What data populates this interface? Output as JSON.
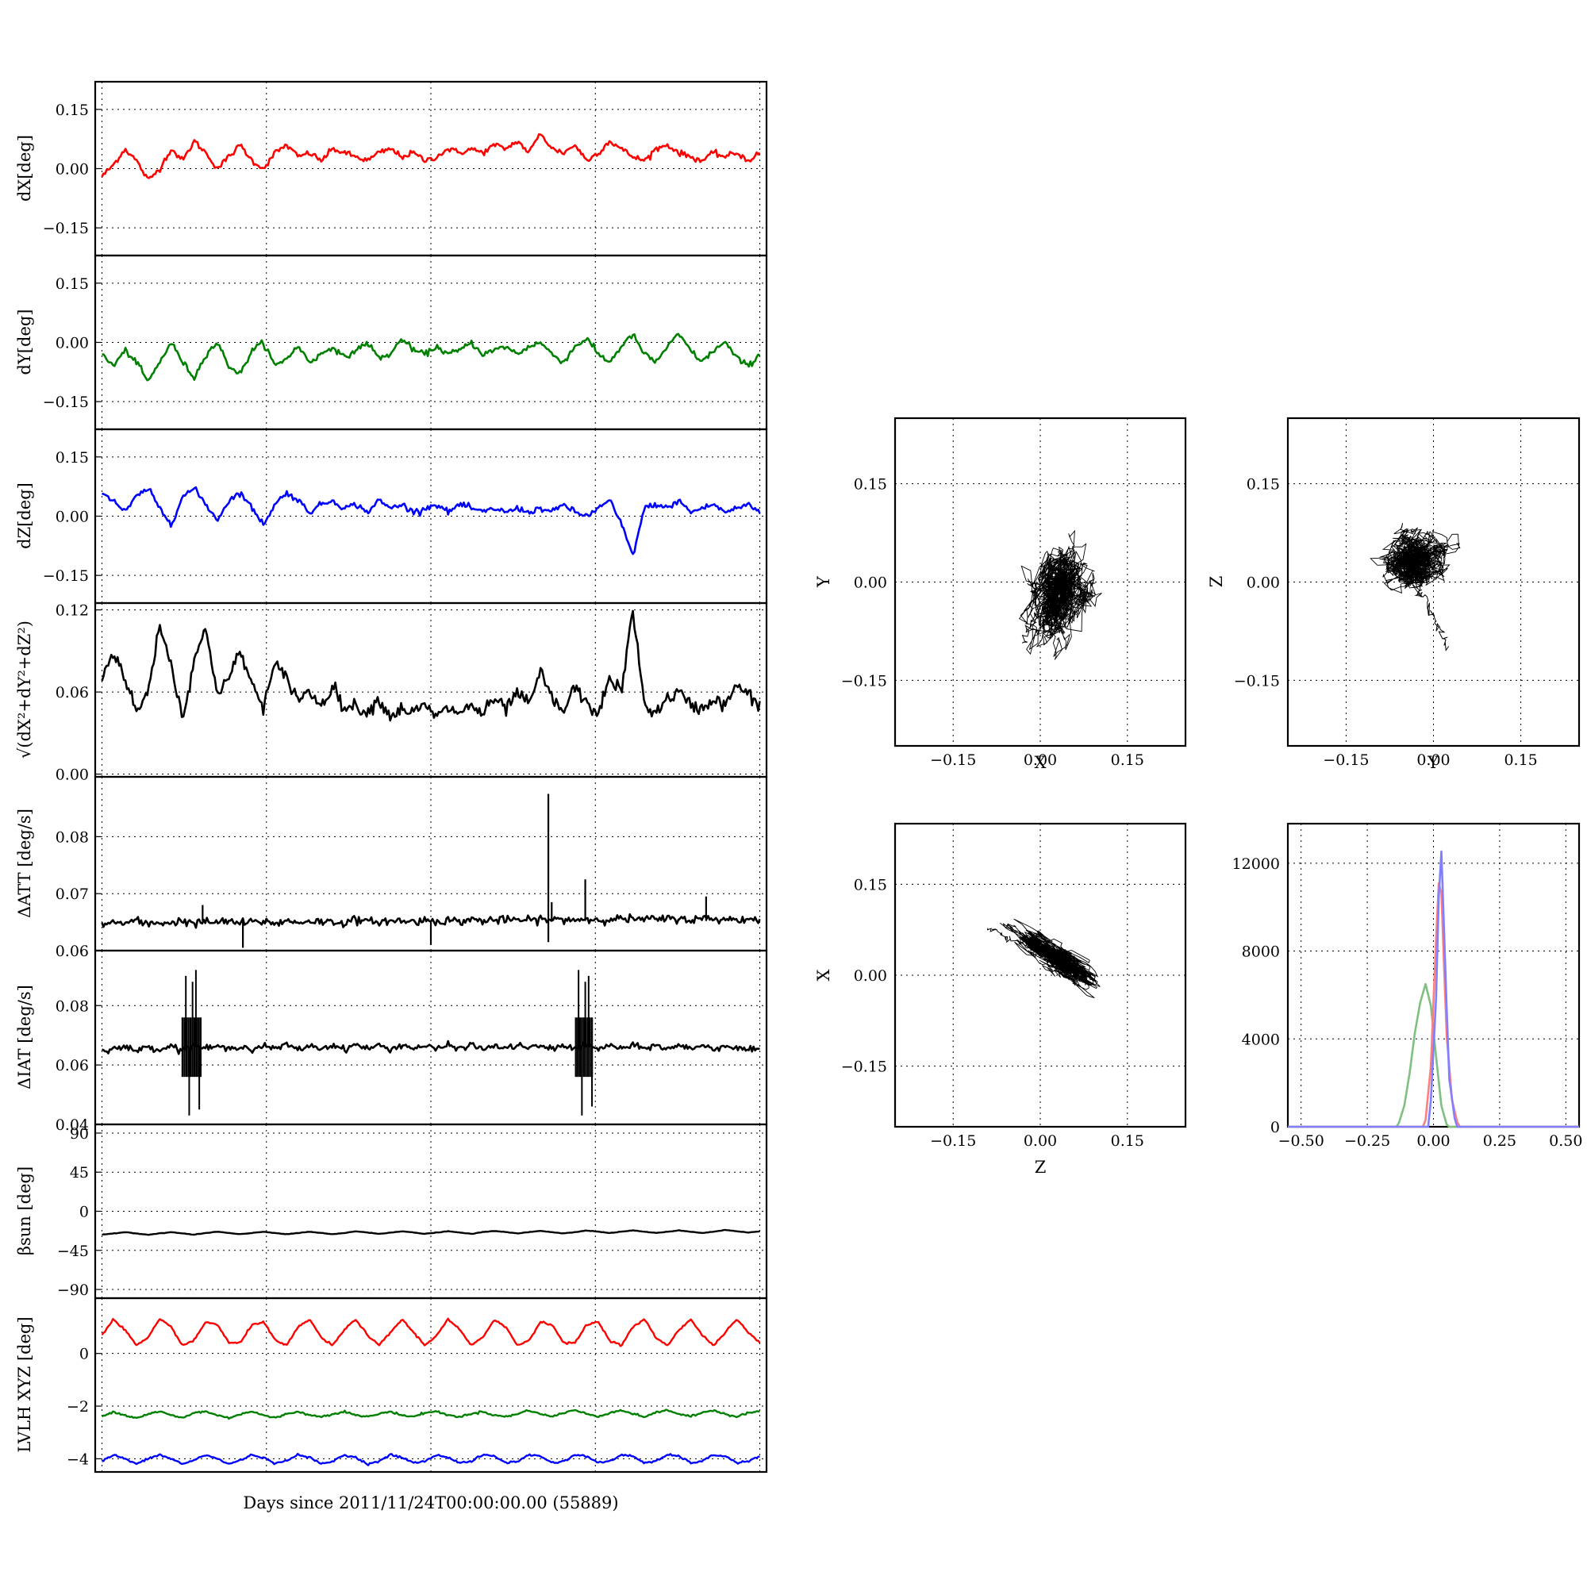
{
  "chart_data": [
    {
      "id": "dX",
      "type": "line",
      "ylabel": "dX[deg]",
      "ylim": [
        -0.22,
        0.22
      ],
      "yticks": [
        -0.15,
        0.0,
        0.15
      ],
      "ytick_labels": [
        "−0.15",
        "0.00",
        "0.15"
      ],
      "grid": true,
      "series": [
        {
          "color": "#ff0000",
          "values": [
            -0.02,
            0.01,
            0.05,
            0.02,
            -0.03,
            0.0,
            0.05,
            0.02,
            0.07,
            0.04,
            0.0,
            0.03,
            0.06,
            0.02,
            -0.0,
            0.04,
            0.06,
            0.03,
            0.04,
            0.02,
            0.05,
            0.04,
            0.03,
            0.02,
            0.04,
            0.05,
            0.03,
            0.04,
            0.02,
            0.03,
            0.05,
            0.04,
            0.05,
            0.04,
            0.06,
            0.05,
            0.07,
            0.04,
            0.09,
            0.05,
            0.04,
            0.06,
            0.02,
            0.04,
            0.07,
            0.05,
            0.03,
            0.02,
            0.05,
            0.06,
            0.04,
            0.03,
            0.02,
            0.04,
            0.03,
            0.04,
            0.02,
            0.04
          ]
        }
      ]
    },
    {
      "id": "dY",
      "type": "line",
      "ylabel": "dY[deg]",
      "ylim": [
        -0.22,
        0.22
      ],
      "yticks": [
        -0.15,
        0.0,
        0.15
      ],
      "ytick_labels": [
        "−0.15",
        "0.00",
        "0.15"
      ],
      "grid": true,
      "series": [
        {
          "color": "#008000",
          "values": [
            -0.03,
            -0.06,
            -0.02,
            -0.05,
            -0.1,
            -0.05,
            0.0,
            -0.05,
            -0.09,
            -0.03,
            0.0,
            -0.06,
            -0.08,
            -0.02,
            0.0,
            -0.06,
            -0.04,
            -0.01,
            -0.05,
            -0.03,
            -0.01,
            -0.04,
            -0.02,
            0.0,
            -0.04,
            -0.03,
            0.01,
            -0.02,
            -0.03,
            -0.01,
            -0.03,
            -0.02,
            0.0,
            -0.03,
            -0.02,
            -0.01,
            -0.03,
            -0.01,
            0.0,
            -0.03,
            -0.05,
            -0.01,
            0.01,
            -0.03,
            -0.05,
            -0.01,
            0.02,
            -0.03,
            -0.05,
            -0.01,
            0.02,
            -0.02,
            -0.05,
            -0.02,
            0.0,
            -0.04,
            -0.06,
            -0.03
          ]
        }
      ]
    },
    {
      "id": "dZ",
      "type": "line",
      "ylabel": "dZ[deg]",
      "ylim": [
        -0.22,
        0.22
      ],
      "yticks": [
        -0.15,
        0.0,
        0.15
      ],
      "ytick_labels": [
        "−0.15",
        "0.00",
        "0.15"
      ],
      "grid": true,
      "series": [
        {
          "color": "#0000ff",
          "values": [
            0.06,
            0.04,
            0.01,
            0.05,
            0.07,
            0.02,
            -0.02,
            0.05,
            0.07,
            0.03,
            -0.01,
            0.04,
            0.06,
            0.02,
            -0.02,
            0.03,
            0.06,
            0.04,
            0.01,
            0.03,
            0.04,
            0.02,
            0.03,
            0.01,
            0.04,
            0.02,
            0.03,
            0.01,
            0.02,
            0.03,
            0.01,
            0.03,
            0.02,
            0.01,
            0.02,
            0.01,
            0.02,
            0.01,
            0.02,
            0.01,
            0.03,
            0.01,
            0.0,
            0.02,
            0.04,
            -0.02,
            -0.1,
            0.02,
            0.03,
            0.02,
            0.04,
            0.01,
            0.02,
            0.03,
            0.01,
            0.02,
            0.03,
            0.01
          ]
        }
      ]
    },
    {
      "id": "dR",
      "type": "line",
      "ylabel": "√(dX²+dY²+dZ²)",
      "ylim": [
        -0.002,
        0.125
      ],
      "yticks": [
        0.0,
        0.06,
        0.12
      ],
      "ytick_labels": [
        "0.00",
        "0.06",
        "0.12"
      ],
      "grid": true,
      "series": [
        {
          "color": "#000000",
          "values": [
            0.07,
            0.09,
            0.07,
            0.045,
            0.06,
            0.11,
            0.08,
            0.04,
            0.085,
            0.105,
            0.06,
            0.07,
            0.09,
            0.065,
            0.05,
            0.08,
            0.07,
            0.055,
            0.06,
            0.05,
            0.065,
            0.048,
            0.05,
            0.045,
            0.055,
            0.042,
            0.048,
            0.045,
            0.05,
            0.042,
            0.048,
            0.045,
            0.05,
            0.044,
            0.055,
            0.047,
            0.06,
            0.05,
            0.075,
            0.055,
            0.045,
            0.065,
            0.05,
            0.045,
            0.07,
            0.06,
            0.12,
            0.05,
            0.045,
            0.055,
            0.06,
            0.05,
            0.048,
            0.055,
            0.05,
            0.065,
            0.058,
            0.05
          ]
        }
      ]
    },
    {
      "id": "dATT",
      "type": "line",
      "ylabel": "ΔATT [deg/s]",
      "ylim": [
        0.06,
        0.0905
      ],
      "yticks": [
        0.06,
        0.07,
        0.08
      ],
      "ytick_labels": [
        "0.06",
        "0.07",
        "0.08"
      ],
      "grid": true,
      "series": [
        {
          "color": "#000000",
          "values": [
            0.0645,
            0.065,
            0.0648,
            0.0652,
            0.0646,
            0.065,
            0.0648,
            0.0653,
            0.0647,
            0.0651,
            0.0649,
            0.0652,
            0.0648,
            0.065,
            0.0651,
            0.0648,
            0.0652,
            0.0649,
            0.0653,
            0.065,
            0.0651,
            0.0649,
            0.0654,
            0.065,
            0.0652,
            0.0651,
            0.0653,
            0.065,
            0.0654,
            0.0652,
            0.0653,
            0.0651,
            0.0655,
            0.0652,
            0.0654,
            0.0653,
            0.0655,
            0.0652,
            0.0656,
            0.0653,
            0.0655,
            0.0654,
            0.0656,
            0.0653,
            0.0657,
            0.0655,
            0.0656,
            0.0654,
            0.0656,
            0.0655,
            0.0657,
            0.0654,
            0.0656,
            0.0655,
            0.0656,
            0.0654,
            0.0655,
            0.0654
          ]
        }
      ]
    },
    {
      "id": "dIAT",
      "type": "line",
      "ylabel": "ΔIAT [deg/s]",
      "ylim": [
        0.04,
        0.0985
      ],
      "yticks": [
        0.04,
        0.06,
        0.08
      ],
      "ytick_labels": [
        "0.04",
        "0.06",
        "0.08"
      ],
      "grid": true,
      "series": [
        {
          "color": "#000000",
          "values": [
            0.065,
            0.0655,
            0.066,
            0.0648,
            0.0662,
            0.0652,
            0.0665,
            0.065,
            0.0668,
            0.0655,
            0.0663,
            0.0652,
            0.0666,
            0.0651,
            0.0665,
            0.0654,
            0.0668,
            0.0652,
            0.0665,
            0.0655,
            0.0667,
            0.0653,
            0.0669,
            0.0655,
            0.0666,
            0.0652,
            0.0668,
            0.0656,
            0.0665,
            0.0653,
            0.0667,
            0.0655,
            0.0669,
            0.0652,
            0.0666,
            0.0654,
            0.0668,
            0.0656,
            0.0665,
            0.0653,
            0.0667,
            0.0655,
            0.0666,
            0.0652,
            0.0668,
            0.0654,
            0.0665,
            0.0656,
            0.0667,
            0.0653,
            0.0666,
            0.0655,
            0.0668,
            0.0652,
            0.0667,
            0.0655,
            0.0652,
            0.0648
          ]
        }
      ]
    },
    {
      "id": "beta",
      "type": "line",
      "ylabel": "βsun [deg]",
      "ylim": [
        -100,
        100
      ],
      "yticks": [
        -90,
        -45,
        0,
        45,
        90
      ],
      "ytick_labels": [
        "−90",
        "−45",
        "0",
        "45",
        "90"
      ],
      "grid": true,
      "series": [
        {
          "color": "#000000",
          "values": [
            -27,
            -25.5,
            -24,
            -25.5,
            -27,
            -25.5,
            -24,
            -25.5,
            -27,
            -25,
            -23.5,
            -25,
            -26.5,
            -25,
            -23.5,
            -25,
            -26.5,
            -25,
            -23.5,
            -25,
            -26.5,
            -25,
            -23,
            -24.5,
            -26,
            -24.5,
            -23,
            -24.5,
            -26,
            -24.5,
            -23,
            -24.5,
            -26,
            -24,
            -22.5,
            -24,
            -25.5,
            -24,
            -22.5,
            -24,
            -25.5,
            -24,
            -22,
            -23.5,
            -25,
            -23.5,
            -22,
            -23.5,
            -25,
            -23.5,
            -22,
            -23.5,
            -25,
            -23.5,
            -21.5,
            -23,
            -24.5,
            -23
          ]
        }
      ]
    },
    {
      "id": "lvlh",
      "type": "line",
      "ylabel": "LVLH XYZ [deg]",
      "ylim": [
        -4.5,
        2.1
      ],
      "yticks": [
        -4,
        -2,
        0
      ],
      "ytick_labels": [
        "−4",
        "−2",
        "0"
      ],
      "grid": true,
      "xlabel": "Days since 2011/11/24T00:00:00.00 (55889)",
      "series": [
        {
          "color": "#ff0000",
          "values": [
            0.7,
            1.3,
            0.9,
            0.3,
            0.6,
            1.3,
            1.0,
            0.3,
            0.5,
            1.2,
            1.1,
            0.4,
            0.4,
            1.1,
            1.2,
            0.5,
            0.3,
            1.0,
            1.3,
            0.6,
            0.3,
            0.9,
            1.3,
            0.7,
            0.3,
            0.8,
            1.3,
            0.8,
            0.3,
            0.7,
            1.3,
            0.9,
            0.3,
            0.6,
            1.3,
            1.0,
            0.3,
            0.5,
            1.2,
            1.1,
            0.4,
            0.4,
            1.1,
            1.2,
            0.5,
            0.3,
            1.0,
            1.3,
            0.6,
            0.3,
            0.9,
            1.3,
            0.7,
            0.3,
            0.8,
            1.3,
            0.8,
            0.4
          ]
        },
        {
          "color": "#008000",
          "values": [
            -2.4,
            -2.2,
            -2.35,
            -2.45,
            -2.3,
            -2.2,
            -2.35,
            -2.45,
            -2.25,
            -2.2,
            -2.35,
            -2.45,
            -2.3,
            -2.2,
            -2.35,
            -2.45,
            -2.3,
            -2.2,
            -2.35,
            -2.4,
            -2.3,
            -2.2,
            -2.35,
            -2.4,
            -2.3,
            -2.2,
            -2.35,
            -2.4,
            -2.25,
            -2.2,
            -2.35,
            -2.4,
            -2.3,
            -2.2,
            -2.35,
            -2.4,
            -2.3,
            -2.15,
            -2.3,
            -2.4,
            -2.25,
            -2.15,
            -2.3,
            -2.4,
            -2.25,
            -2.15,
            -2.3,
            -2.4,
            -2.25,
            -2.15,
            -2.3,
            -2.4,
            -2.25,
            -2.15,
            -2.3,
            -2.4,
            -2.25,
            -2.2
          ]
        },
        {
          "color": "#0000ff",
          "values": [
            -4.1,
            -3.85,
            -4.0,
            -4.2,
            -4.0,
            -3.85,
            -4.0,
            -4.2,
            -4.05,
            -3.85,
            -4.0,
            -4.2,
            -4.05,
            -3.85,
            -3.95,
            -4.2,
            -4.05,
            -3.85,
            -3.95,
            -4.2,
            -4.1,
            -3.85,
            -3.95,
            -4.2,
            -4.1,
            -3.85,
            -3.95,
            -4.15,
            -4.1,
            -3.85,
            -3.95,
            -4.15,
            -4.1,
            -3.85,
            -3.9,
            -4.15,
            -4.1,
            -3.85,
            -3.9,
            -4.15,
            -4.1,
            -3.85,
            -3.9,
            -4.15,
            -4.1,
            -3.85,
            -3.9,
            -4.15,
            -4.1,
            -3.85,
            -3.9,
            -4.15,
            -4.1,
            -3.85,
            -3.9,
            -4.15,
            -4.1,
            -3.9
          ]
        }
      ]
    },
    {
      "id": "xy",
      "type": "scatter",
      "xlabel": "X",
      "ylabel": "Y",
      "xlim": [
        -0.25,
        0.25
      ],
      "ylim": [
        -0.25,
        0.25
      ],
      "xticks": [
        -0.15,
        0.0,
        0.15
      ],
      "xtick_labels": [
        "−0.15",
        "0.00",
        "0.15"
      ],
      "yticks": [
        -0.15,
        0.0,
        0.15
      ],
      "ytick_labels": [
        "−0.15",
        "0.00",
        "0.15"
      ],
      "grid": true,
      "cloud": {
        "color": "#000000",
        "cx": 0.03,
        "cy": -0.02,
        "sx": 0.022,
        "sy": 0.03,
        "rho": 0.3
      }
    },
    {
      "id": "yz",
      "type": "scatter",
      "xlabel": "Y",
      "ylabel": "Z",
      "xlim": [
        -0.25,
        0.25
      ],
      "ylim": [
        -0.25,
        0.25
      ],
      "xticks": [
        -0.15,
        0.0,
        0.15
      ],
      "xtick_labels": [
        "−0.15",
        "0.00",
        "0.15"
      ],
      "yticks": [
        -0.15,
        0.0,
        0.15
      ],
      "ytick_labels": [
        "−0.15",
        "0.00",
        "0.15"
      ],
      "grid": true,
      "cloud": {
        "color": "#000000",
        "cx": -0.03,
        "cy": 0.03,
        "sx": 0.025,
        "sy": 0.018,
        "rho": 0.1
      }
    },
    {
      "id": "zx",
      "type": "scatter",
      "xlabel": "Z",
      "ylabel": "X",
      "xlim": [
        -0.25,
        0.25
      ],
      "ylim": [
        -0.25,
        0.25
      ],
      "xticks": [
        -0.15,
        0.0,
        0.15
      ],
      "xtick_labels": [
        "−0.15",
        "0.00",
        "0.15"
      ],
      "yticks": [
        -0.15,
        0.0,
        0.15
      ],
      "ytick_labels": [
        "−0.15",
        "0.00",
        "0.15"
      ],
      "grid": true,
      "cloud": {
        "color": "#000000",
        "cx": 0.025,
        "cy": 0.03,
        "sx": 0.028,
        "sy": 0.02,
        "rho": -0.85
      }
    },
    {
      "id": "hist",
      "type": "histogram",
      "xlim": [
        -0.55,
        0.55
      ],
      "ylim": [
        0,
        13800
      ],
      "xticks": [
        -0.5,
        -0.25,
        0.0,
        0.25,
        0.5
      ],
      "xtick_labels": [
        "−0.50",
        "−0.25",
        "0.00",
        "0.25",
        "0.50"
      ],
      "yticks": [
        0,
        4000,
        8000,
        12000
      ],
      "ytick_labels": [
        "0",
        "4000",
        "8000",
        "12000"
      ],
      "grid": true,
      "series": [
        {
          "color": "#7fbf7f",
          "centers": [
            -0.13,
            -0.11,
            -0.09,
            -0.07,
            -0.05,
            -0.03,
            -0.01,
            0.01,
            0.03,
            0.05
          ],
          "counts": [
            200,
            1000,
            2600,
            4200,
            6000,
            6900,
            5800,
            3200,
            900,
            100
          ]
        },
        {
          "color": "#ff7f7f",
          "centers": [
            -0.03,
            -0.01,
            0.01,
            0.02,
            0.03,
            0.04,
            0.05,
            0.07,
            0.09
          ],
          "counts": [
            300,
            2800,
            8200,
            11200,
            10800,
            7600,
            4000,
            1200,
            200
          ]
        },
        {
          "color": "#7f7fff",
          "centers": [
            -0.01,
            0.01,
            0.02,
            0.03,
            0.04,
            0.05,
            0.06,
            0.08
          ],
          "counts": [
            1200,
            6000,
            10200,
            12500,
            9500,
            5200,
            2200,
            400
          ]
        }
      ]
    }
  ]
}
